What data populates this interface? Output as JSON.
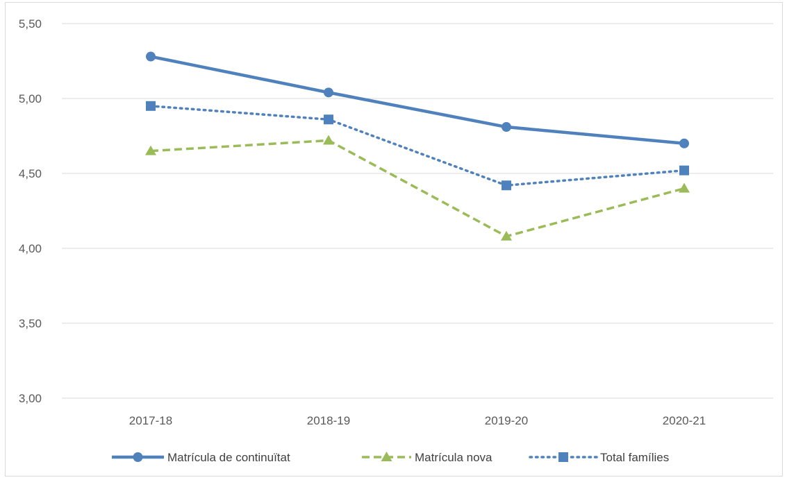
{
  "chart_data": {
    "type": "line",
    "categories": [
      "2017-18",
      "2018-19",
      "2019-20",
      "2020-21"
    ],
    "ylim": [
      3.0,
      5.5
    ],
    "yticks": [
      "3,00",
      "3,50",
      "4,00",
      "4,50",
      "5,00",
      "5,50"
    ],
    "grid": true,
    "legend_position": "bottom",
    "series": [
      {
        "name": "Matrícula de continuïtat",
        "values": [
          5.28,
          5.04,
          4.81,
          4.7
        ],
        "color": "#4f81bd",
        "line": "solid",
        "marker": "circle"
      },
      {
        "name": "Matrícula nova",
        "values": [
          4.65,
          4.72,
          4.08,
          4.4
        ],
        "color": "#9bbb59",
        "line": "dashed",
        "marker": "triangle"
      },
      {
        "name": "Total famílies",
        "values": [
          4.95,
          4.86,
          4.42,
          4.52
        ],
        "color": "#4f81bd",
        "line": "dotted",
        "marker": "square"
      }
    ]
  }
}
